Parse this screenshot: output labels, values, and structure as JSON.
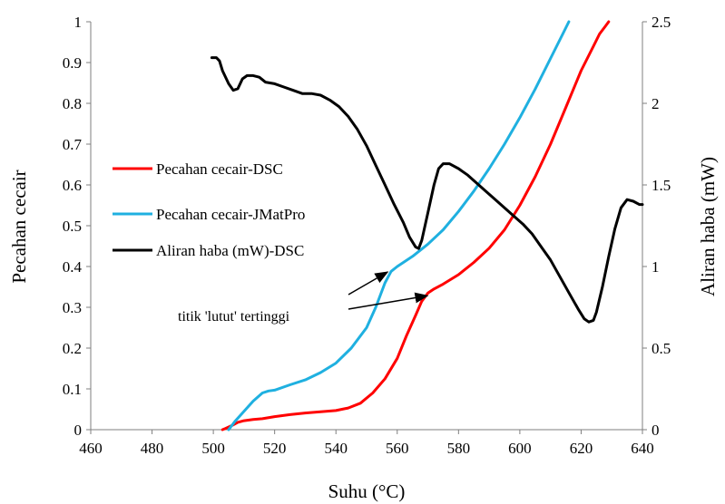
{
  "chart_data": {
    "type": "line",
    "xlabel": "Suhu (°C)",
    "ylabel_left": "Pecahan cecair",
    "ylabel_right": "Aliran haba (mW)",
    "xlim": [
      460,
      640
    ],
    "ylim_left": [
      0,
      1
    ],
    "ylim_right": [
      0,
      2.5
    ],
    "x_ticks": [
      460,
      480,
      500,
      520,
      540,
      560,
      580,
      600,
      620,
      640
    ],
    "y_left_ticks": [
      "0",
      "0.1",
      "0.2",
      "0.3",
      "0.4",
      "0.5",
      "0.6",
      "0.7",
      "0.8",
      "0.9",
      "1"
    ],
    "y_right_ticks": [
      "0",
      "0.5",
      "1",
      "1.5",
      "2",
      "2.5"
    ],
    "grid": false,
    "legend_position": "left-middle",
    "series": [
      {
        "name": "Pecahan cecair-DSC",
        "color": "#ff0000",
        "axis": "left",
        "points": [
          [
            503,
            0
          ],
          [
            504,
            0.003
          ],
          [
            506,
            0.01
          ],
          [
            508,
            0.018
          ],
          [
            510,
            0.022
          ],
          [
            513,
            0.025
          ],
          [
            516,
            0.027
          ],
          [
            520,
            0.032
          ],
          [
            525,
            0.037
          ],
          [
            530,
            0.041
          ],
          [
            535,
            0.044
          ],
          [
            540,
            0.047
          ],
          [
            544,
            0.053
          ],
          [
            548,
            0.065
          ],
          [
            552,
            0.09
          ],
          [
            556,
            0.125
          ],
          [
            560,
            0.175
          ],
          [
            563,
            0.23
          ],
          [
            566,
            0.28
          ],
          [
            568,
            0.315
          ],
          [
            570,
            0.335
          ],
          [
            572,
            0.345
          ],
          [
            575,
            0.357
          ],
          [
            580,
            0.38
          ],
          [
            585,
            0.41
          ],
          [
            590,
            0.445
          ],
          [
            595,
            0.49
          ],
          [
            600,
            0.55
          ],
          [
            605,
            0.62
          ],
          [
            610,
            0.7
          ],
          [
            615,
            0.79
          ],
          [
            620,
            0.88
          ],
          [
            624,
            0.94
          ],
          [
            626,
            0.97
          ],
          [
            628,
            0.99
          ],
          [
            629,
            1.0
          ]
        ]
      },
      {
        "name": "Pecahan cecair-JMatPro",
        "color": "#1fb0e0",
        "axis": "left",
        "points": [
          [
            505,
            0
          ],
          [
            507,
            0.02
          ],
          [
            510,
            0.045
          ],
          [
            513,
            0.07
          ],
          [
            516,
            0.09
          ],
          [
            518,
            0.095
          ],
          [
            520,
            0.097
          ],
          [
            525,
            0.11
          ],
          [
            530,
            0.122
          ],
          [
            535,
            0.14
          ],
          [
            540,
            0.163
          ],
          [
            545,
            0.2
          ],
          [
            550,
            0.25
          ],
          [
            553,
            0.3
          ],
          [
            556,
            0.36
          ],
          [
            558,
            0.388
          ],
          [
            560,
            0.4
          ],
          [
            565,
            0.425
          ],
          [
            570,
            0.455
          ],
          [
            575,
            0.49
          ],
          [
            580,
            0.535
          ],
          [
            585,
            0.585
          ],
          [
            590,
            0.64
          ],
          [
            595,
            0.7
          ],
          [
            600,
            0.765
          ],
          [
            605,
            0.835
          ],
          [
            610,
            0.91
          ],
          [
            614,
            0.97
          ],
          [
            616,
            1.0
          ]
        ]
      },
      {
        "name": "Aliran haba (mW)-DSC",
        "color": "#000000",
        "axis": "right",
        "points": [
          [
            499.5,
            2.28
          ],
          [
            501,
            2.28
          ],
          [
            502,
            2.26
          ],
          [
            503,
            2.2
          ],
          [
            505,
            2.12
          ],
          [
            506.5,
            2.08
          ],
          [
            508,
            2.09
          ],
          [
            509.5,
            2.15
          ],
          [
            511,
            2.17
          ],
          [
            513,
            2.17
          ],
          [
            515,
            2.16
          ],
          [
            517,
            2.13
          ],
          [
            520,
            2.12
          ],
          [
            523,
            2.1
          ],
          [
            526,
            2.08
          ],
          [
            529,
            2.06
          ],
          [
            532,
            2.06
          ],
          [
            535,
            2.05
          ],
          [
            538,
            2.02
          ],
          [
            541,
            1.98
          ],
          [
            544,
            1.92
          ],
          [
            547,
            1.84
          ],
          [
            550,
            1.74
          ],
          [
            553,
            1.62
          ],
          [
            556,
            1.5
          ],
          [
            559,
            1.38
          ],
          [
            562,
            1.27
          ],
          [
            564,
            1.18
          ],
          [
            566,
            1.12
          ],
          [
            567,
            1.11
          ],
          [
            568,
            1.16
          ],
          [
            570,
            1.33
          ],
          [
            572,
            1.5
          ],
          [
            573.5,
            1.6
          ],
          [
            575,
            1.63
          ],
          [
            577,
            1.63
          ],
          [
            580,
            1.6
          ],
          [
            583,
            1.56
          ],
          [
            586,
            1.51
          ],
          [
            589,
            1.46
          ],
          [
            592,
            1.41
          ],
          [
            595,
            1.36
          ],
          [
            598,
            1.31
          ],
          [
            601,
            1.26
          ],
          [
            604,
            1.2
          ],
          [
            607,
            1.12
          ],
          [
            610,
            1.04
          ],
          [
            613,
            0.94
          ],
          [
            616,
            0.84
          ],
          [
            619,
            0.74
          ],
          [
            621,
            0.68
          ],
          [
            622.5,
            0.66
          ],
          [
            624,
            0.67
          ],
          [
            625,
            0.72
          ],
          [
            627,
            0.88
          ],
          [
            629,
            1.06
          ],
          [
            631,
            1.23
          ],
          [
            633,
            1.36
          ],
          [
            635,
            1.41
          ],
          [
            637,
            1.4
          ],
          [
            639,
            1.38
          ],
          [
            640,
            1.38
          ]
        ]
      }
    ],
    "annotation": {
      "text": "titik 'lutut' tertinggi",
      "arrow_targets": [
        [
          558,
          0.393
        ],
        [
          571,
          0.335
        ]
      ]
    }
  }
}
